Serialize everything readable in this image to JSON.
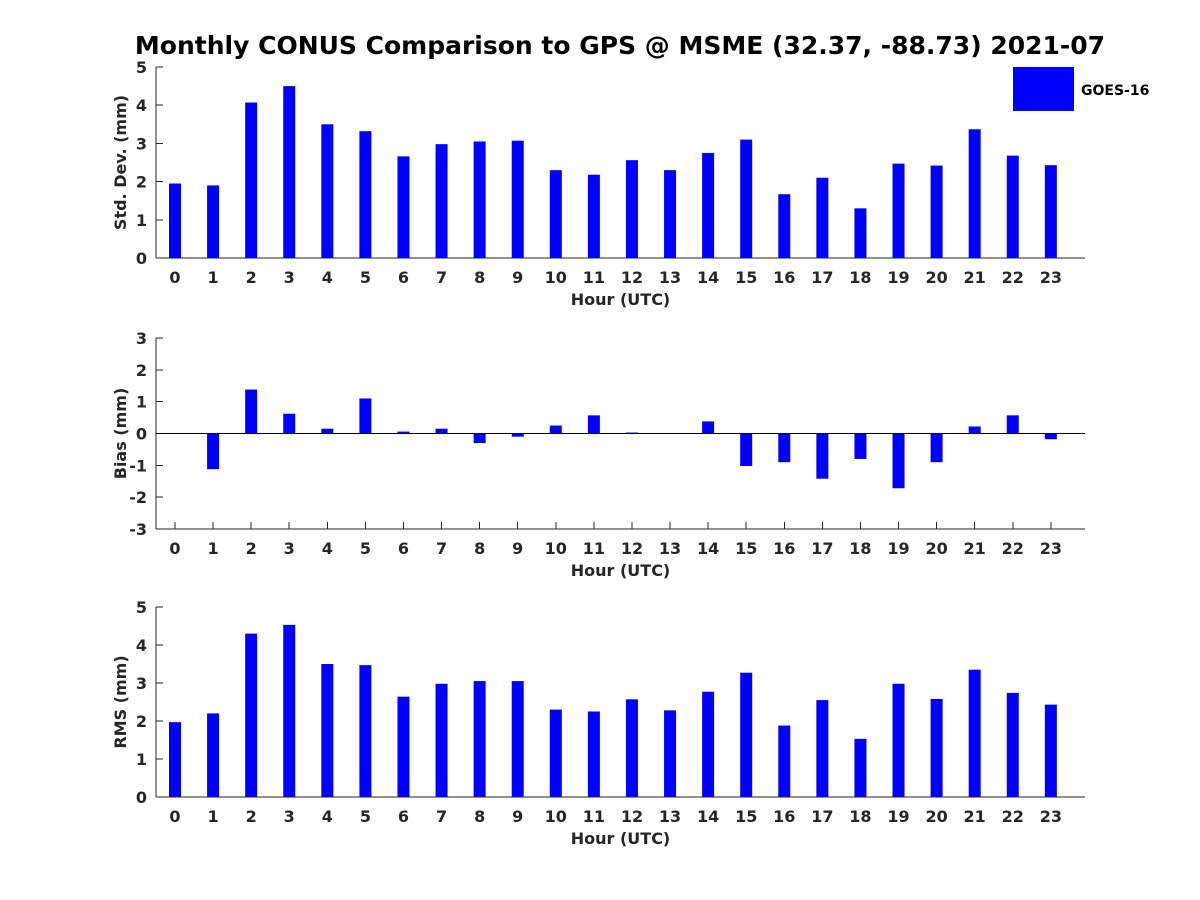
{
  "figure": {
    "title": "Monthly CONUS Comparison to GPS @ MSME (32.37, -88.73) 2021-07",
    "legend_label": "GOES-16",
    "bar_color": "#0000FF"
  },
  "chart_data": [
    {
      "type": "bar",
      "ylabel": "Std. Dev. (mm)",
      "xlabel": "Hour (UTC)",
      "ylim": [
        0,
        5
      ],
      "yticks": [
        "0",
        "1",
        "2",
        "3",
        "4",
        "5"
      ],
      "categories": [
        "0",
        "1",
        "2",
        "3",
        "4",
        "5",
        "6",
        "7",
        "8",
        "9",
        "10",
        "11",
        "12",
        "13",
        "14",
        "15",
        "16",
        "17",
        "18",
        "19",
        "20",
        "21",
        "22",
        "23"
      ],
      "series": [
        {
          "name": "GOES-16",
          "values": [
            1.95,
            1.9,
            4.07,
            4.5,
            3.5,
            3.32,
            2.66,
            2.98,
            3.05,
            3.07,
            2.3,
            2.18,
            2.56,
            2.3,
            2.75,
            3.1,
            1.67,
            2.1,
            1.3,
            2.47,
            2.42,
            3.37,
            2.68,
            2.43
          ]
        }
      ]
    },
    {
      "type": "bar",
      "ylabel": "Bias (mm)",
      "xlabel": "Hour (UTC)",
      "ylim": [
        -3,
        3
      ],
      "yticks": [
        "-3",
        "-2",
        "-1",
        "0",
        "1",
        "2",
        "3"
      ],
      "categories": [
        "0",
        "1",
        "2",
        "3",
        "4",
        "5",
        "6",
        "7",
        "8",
        "9",
        "10",
        "11",
        "12",
        "13",
        "14",
        "15",
        "16",
        "17",
        "18",
        "19",
        "20",
        "21",
        "22",
        "23"
      ],
      "series": [
        {
          "name": "GOES-16",
          "values": [
            0,
            -1.12,
            1.38,
            0.62,
            0.15,
            1.1,
            0.06,
            0.15,
            -0.3,
            -0.1,
            0.25,
            0.57,
            0.03,
            0,
            0.38,
            -1.02,
            -0.9,
            -1.42,
            -0.8,
            -1.72,
            -0.9,
            0.22,
            0.57,
            -0.18
          ]
        }
      ]
    },
    {
      "type": "bar",
      "ylabel": "RMS (mm)",
      "xlabel": "Hour (UTC)",
      "ylim": [
        0,
        5
      ],
      "yticks": [
        "0",
        "1",
        "2",
        "3",
        "4",
        "5"
      ],
      "categories": [
        "0",
        "1",
        "2",
        "3",
        "4",
        "5",
        "6",
        "7",
        "8",
        "9",
        "10",
        "11",
        "12",
        "13",
        "14",
        "15",
        "16",
        "17",
        "18",
        "19",
        "20",
        "21",
        "22",
        "23"
      ],
      "series": [
        {
          "name": "GOES-16",
          "values": [
            1.97,
            2.2,
            4.3,
            4.53,
            3.5,
            3.47,
            2.64,
            2.98,
            3.05,
            3.05,
            2.3,
            2.25,
            2.57,
            2.28,
            2.77,
            3.27,
            1.88,
            2.55,
            1.53,
            2.98,
            2.58,
            3.35,
            2.74,
            2.43
          ]
        }
      ]
    }
  ]
}
